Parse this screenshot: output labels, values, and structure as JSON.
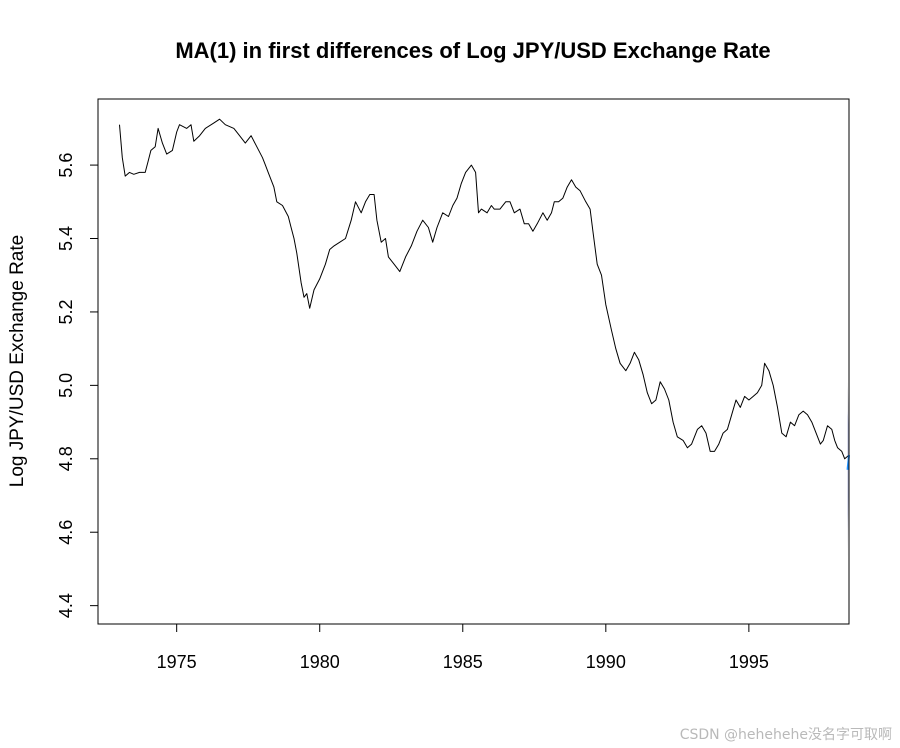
{
  "chart_data": {
    "type": "line",
    "title": "MA(1) in first differences of Log JPY/USD Exchange Rate",
    "xlabel": "",
    "ylabel": "Log JPY/USD Exchange Rate",
    "xlim": [
      1972.25,
      1998.5
    ],
    "ylim": [
      4.35,
      5.78
    ],
    "x_ticks": [
      1975,
      1980,
      1985,
      1990,
      1995
    ],
    "y_ticks": [
      4.4,
      4.6,
      4.8,
      5.0,
      5.2,
      5.4,
      5.6
    ],
    "grid": false,
    "legend": "none",
    "series": [
      {
        "color": "#000000",
        "points": [
          [
            1973.0,
            5.71
          ],
          [
            1973.1,
            5.62
          ],
          [
            1973.2,
            5.57
          ],
          [
            1973.35,
            5.58
          ],
          [
            1973.5,
            5.575
          ],
          [
            1973.7,
            5.58
          ],
          [
            1973.9,
            5.58
          ],
          [
            1974.0,
            5.61
          ],
          [
            1974.1,
            5.64
          ],
          [
            1974.25,
            5.65
          ],
          [
            1974.35,
            5.7
          ],
          [
            1974.5,
            5.66
          ],
          [
            1974.65,
            5.63
          ],
          [
            1974.85,
            5.64
          ],
          [
            1975.0,
            5.69
          ],
          [
            1975.1,
            5.71
          ],
          [
            1975.35,
            5.7
          ],
          [
            1975.5,
            5.71
          ],
          [
            1975.6,
            5.665
          ],
          [
            1975.8,
            5.68
          ],
          [
            1976.0,
            5.7
          ],
          [
            1976.3,
            5.715
          ],
          [
            1976.5,
            5.725
          ],
          [
            1976.7,
            5.71
          ],
          [
            1977.0,
            5.7
          ],
          [
            1977.2,
            5.68
          ],
          [
            1977.4,
            5.66
          ],
          [
            1977.6,
            5.68
          ],
          [
            1977.8,
            5.65
          ],
          [
            1978.0,
            5.62
          ],
          [
            1978.1,
            5.6
          ],
          [
            1978.2,
            5.58
          ],
          [
            1978.4,
            5.54
          ],
          [
            1978.5,
            5.5
          ],
          [
            1978.7,
            5.49
          ],
          [
            1978.9,
            5.46
          ],
          [
            1979.0,
            5.43
          ],
          [
            1979.1,
            5.4
          ],
          [
            1979.2,
            5.36
          ],
          [
            1979.35,
            5.28
          ],
          [
            1979.45,
            5.24
          ],
          [
            1979.55,
            5.25
          ],
          [
            1979.65,
            5.21
          ],
          [
            1979.8,
            5.26
          ],
          [
            1980.0,
            5.29
          ],
          [
            1980.2,
            5.33
          ],
          [
            1980.35,
            5.37
          ],
          [
            1980.5,
            5.38
          ],
          [
            1980.7,
            5.39
          ],
          [
            1980.9,
            5.4
          ],
          [
            1981.1,
            5.45
          ],
          [
            1981.25,
            5.5
          ],
          [
            1981.45,
            5.47
          ],
          [
            1981.6,
            5.5
          ],
          [
            1981.75,
            5.52
          ],
          [
            1981.9,
            5.52
          ],
          [
            1982.0,
            5.45
          ],
          [
            1982.15,
            5.39
          ],
          [
            1982.3,
            5.4
          ],
          [
            1982.4,
            5.35
          ],
          [
            1982.6,
            5.33
          ],
          [
            1982.8,
            5.31
          ],
          [
            1983.0,
            5.35
          ],
          [
            1983.2,
            5.38
          ],
          [
            1983.4,
            5.42
          ],
          [
            1983.6,
            5.45
          ],
          [
            1983.8,
            5.43
          ],
          [
            1983.95,
            5.39
          ],
          [
            1984.1,
            5.43
          ],
          [
            1984.3,
            5.47
          ],
          [
            1984.5,
            5.46
          ],
          [
            1984.65,
            5.49
          ],
          [
            1984.8,
            5.51
          ],
          [
            1984.95,
            5.55
          ],
          [
            1985.1,
            5.58
          ],
          [
            1985.3,
            5.6
          ],
          [
            1985.45,
            5.58
          ],
          [
            1985.55,
            5.47
          ],
          [
            1985.65,
            5.48
          ],
          [
            1985.85,
            5.47
          ],
          [
            1986.0,
            5.49
          ],
          [
            1986.1,
            5.48
          ],
          [
            1986.3,
            5.48
          ],
          [
            1986.5,
            5.5
          ],
          [
            1986.65,
            5.5
          ],
          [
            1986.8,
            5.47
          ],
          [
            1987.0,
            5.48
          ],
          [
            1987.15,
            5.44
          ],
          [
            1987.3,
            5.44
          ],
          [
            1987.45,
            5.42
          ],
          [
            1987.6,
            5.44
          ],
          [
            1987.8,
            5.47
          ],
          [
            1987.95,
            5.45
          ],
          [
            1988.1,
            5.47
          ],
          [
            1988.2,
            5.5
          ],
          [
            1988.35,
            5.5
          ],
          [
            1988.5,
            5.51
          ],
          [
            1988.65,
            5.54
          ],
          [
            1988.8,
            5.56
          ],
          [
            1988.95,
            5.54
          ],
          [
            1989.1,
            5.53
          ],
          [
            1989.3,
            5.5
          ],
          [
            1989.45,
            5.48
          ],
          [
            1989.55,
            5.42
          ],
          [
            1989.7,
            5.33
          ],
          [
            1989.85,
            5.3
          ],
          [
            1990.0,
            5.22
          ],
          [
            1990.2,
            5.15
          ],
          [
            1990.35,
            5.1
          ],
          [
            1990.5,
            5.06
          ],
          [
            1990.7,
            5.04
          ],
          [
            1990.85,
            5.06
          ],
          [
            1991.0,
            5.09
          ],
          [
            1991.15,
            5.07
          ],
          [
            1991.3,
            5.03
          ],
          [
            1991.45,
            4.98
          ],
          [
            1991.6,
            4.95
          ],
          [
            1991.75,
            4.96
          ],
          [
            1991.9,
            5.01
          ],
          [
            1992.05,
            4.99
          ],
          [
            1992.2,
            4.96
          ],
          [
            1992.35,
            4.9
          ],
          [
            1992.5,
            4.86
          ],
          [
            1992.7,
            4.85
          ],
          [
            1992.85,
            4.83
          ],
          [
            1993.0,
            4.84
          ],
          [
            1993.2,
            4.88
          ],
          [
            1993.35,
            4.89
          ],
          [
            1993.5,
            4.87
          ],
          [
            1993.65,
            4.82
          ],
          [
            1993.8,
            4.82
          ],
          [
            1993.95,
            4.84
          ],
          [
            1994.1,
            4.87
          ],
          [
            1994.25,
            4.88
          ],
          [
            1994.4,
            4.92
          ],
          [
            1994.55,
            4.96
          ],
          [
            1994.7,
            4.94
          ],
          [
            1994.85,
            4.97
          ],
          [
            1995.0,
            4.96
          ],
          [
            1995.15,
            4.97
          ],
          [
            1995.3,
            4.98
          ],
          [
            1995.45,
            5.0
          ],
          [
            1995.55,
            5.06
          ],
          [
            1995.7,
            5.04
          ],
          [
            1995.85,
            5.0
          ],
          [
            1996.0,
            4.94
          ],
          [
            1996.15,
            4.87
          ],
          [
            1996.3,
            4.86
          ],
          [
            1996.45,
            4.9
          ],
          [
            1996.6,
            4.89
          ],
          [
            1996.75,
            4.92
          ],
          [
            1996.9,
            4.93
          ],
          [
            1997.05,
            4.92
          ],
          [
            1997.2,
            4.9
          ],
          [
            1997.35,
            4.87
          ],
          [
            1997.5,
            4.84
          ],
          [
            1997.6,
            4.85
          ],
          [
            1997.75,
            4.89
          ],
          [
            1997.9,
            4.88
          ],
          [
            1998.0,
            4.85
          ],
          [
            1998.1,
            4.83
          ],
          [
            1998.25,
            4.82
          ],
          [
            1998.35,
            4.8
          ],
          [
            1998.5,
            4.81
          ]
        ]
      },
      {
        "color": "#1e90ff",
        "points": []
      }
    ],
    "forecast_band_outer_color": "#d9d9e0",
    "forecast_band_inner_color": "#b0b6d6"
  },
  "watermark": "CSDN @hehehehe没名字可取啊"
}
